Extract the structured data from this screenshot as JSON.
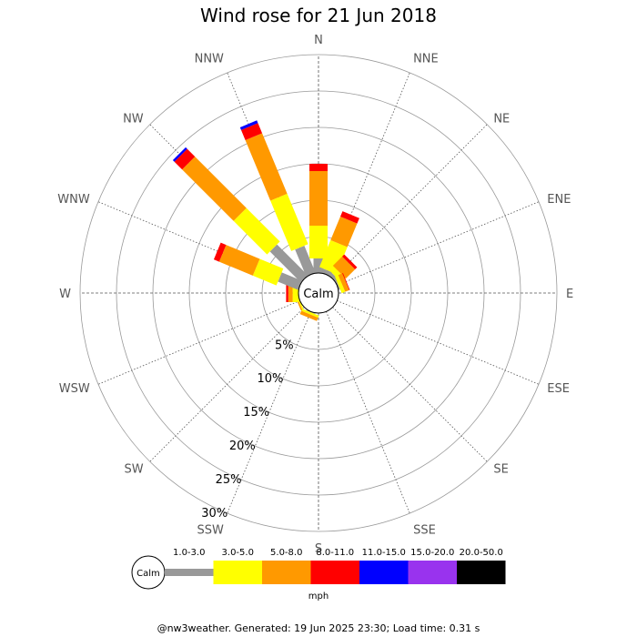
{
  "chart_data": {
    "type": "wind-rose",
    "title": "Wind rose for 21 Jun 2018",
    "directions": [
      "N",
      "NNE",
      "NE",
      "ENE",
      "E",
      "ESE",
      "SE",
      "SSE",
      "S",
      "SSW",
      "SW",
      "WSW",
      "W",
      "WNW",
      "NW",
      "NNW"
    ],
    "ring_labels": [
      "5%",
      "10%",
      "15%",
      "20%",
      "25%",
      "30%"
    ],
    "rings_percent": [
      5,
      10,
      15,
      20,
      25,
      30
    ],
    "max_percent": 30,
    "calm_label": "Calm",
    "speed_bins": [
      {
        "label": "1.0-3.0",
        "color": "#999999"
      },
      {
        "label": "3.0-5.0",
        "color": "#ffff00"
      },
      {
        "label": "5.0-8.0",
        "color": "#ff9900"
      },
      {
        "label": "8.0-11.0",
        "color": "#ff0000"
      },
      {
        "label": "11.0-15.0",
        "color": "#0000ff"
      },
      {
        "label": "15.0-20.0",
        "color": "#9933ee"
      },
      {
        "label": "20.0-50.0",
        "color": "#000000"
      }
    ],
    "series": [
      {
        "direction": "N",
        "values": [
          2.0,
          4.5,
          7.5,
          1.0,
          0,
          0,
          0
        ]
      },
      {
        "direction": "NNE",
        "values": [
          0.6,
          4.0,
          3.5,
          0.8,
          0,
          0,
          0
        ]
      },
      {
        "direction": "NE",
        "values": [
          0.5,
          0.8,
          1.8,
          0.4,
          0,
          0,
          0
        ]
      },
      {
        "direction": "ENE",
        "values": [
          0.2,
          0.5,
          0.6,
          0.1,
          0,
          0,
          0
        ]
      },
      {
        "direction": "E",
        "values": [
          0,
          0,
          0,
          0,
          0,
          0,
          0
        ]
      },
      {
        "direction": "ESE",
        "values": [
          0,
          0,
          0,
          0,
          0,
          0,
          0
        ]
      },
      {
        "direction": "SE",
        "values": [
          0,
          0,
          0,
          0,
          0,
          0,
          0
        ]
      },
      {
        "direction": "SSE",
        "values": [
          0,
          0,
          0,
          0,
          0,
          0,
          0
        ]
      },
      {
        "direction": "S",
        "values": [
          0,
          0,
          0,
          0,
          0,
          0,
          0
        ]
      },
      {
        "direction": "SSW",
        "values": [
          0.1,
          0.3,
          0.5,
          0,
          0,
          0,
          0
        ]
      },
      {
        "direction": "SW",
        "values": [
          0,
          0,
          0,
          0,
          0,
          0,
          0
        ]
      },
      {
        "direction": "WSW",
        "values": [
          0,
          0.2,
          0.2,
          0,
          0,
          0,
          0
        ]
      },
      {
        "direction": "W",
        "values": [
          0,
          0.8,
          0.6,
          0.3,
          0,
          0,
          0
        ]
      },
      {
        "direction": "WNW",
        "values": [
          3.0,
          3.5,
          5.0,
          0.8,
          0,
          0,
          0
        ]
      },
      {
        "direction": "NW",
        "values": [
          6.0,
          6.5,
          10.0,
          1.5,
          0.3,
          0,
          0
        ]
      },
      {
        "direction": "NNW",
        "values": [
          4.0,
          7.5,
          9.0,
          1.5,
          0.4,
          0,
          0
        ]
      }
    ],
    "legend_unit": "mph",
    "grid": true
  },
  "footer": "@nw3weather. Generated: 19 Jun 2025 23:30; Load time: 0.31 s"
}
